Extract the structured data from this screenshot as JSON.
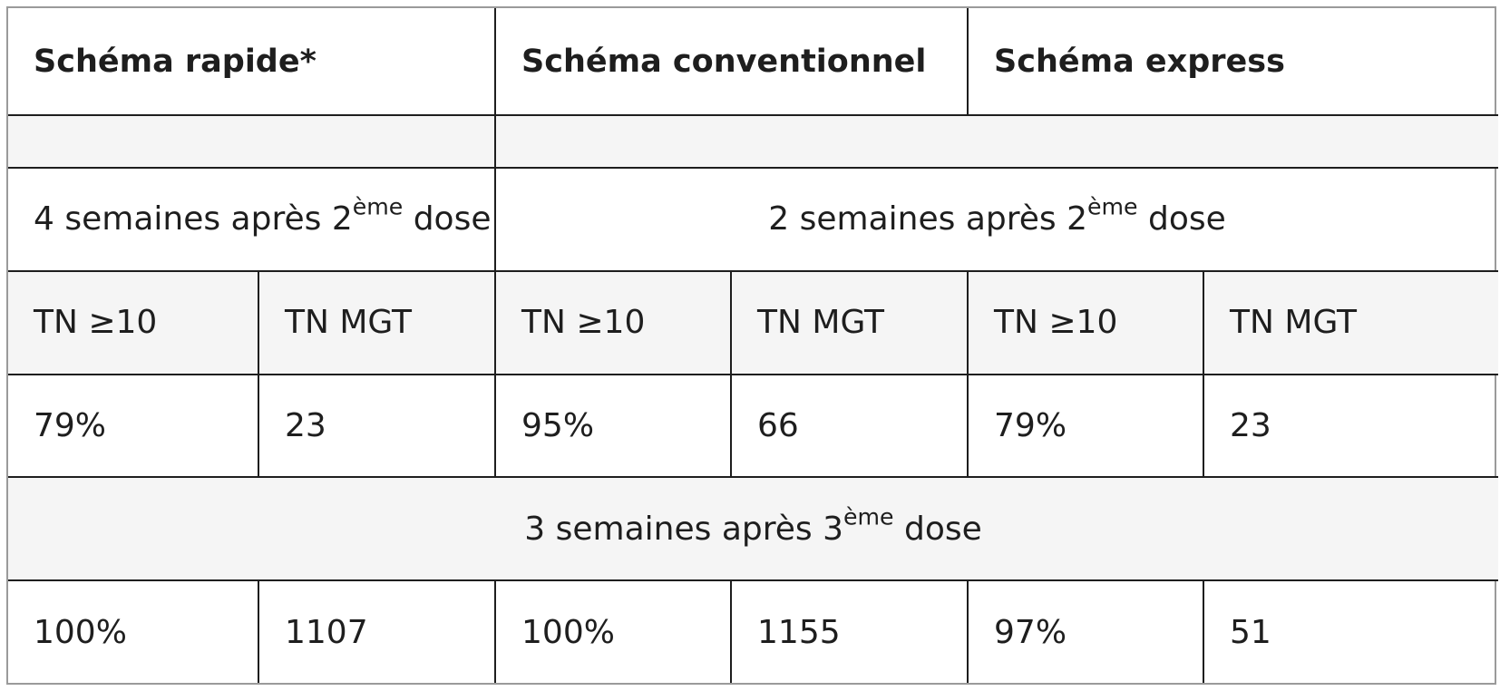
{
  "table": {
    "headers": [
      "Schéma rapide*",
      "Schéma conventionnel",
      "Schéma express"
    ],
    "period_2nd_dose_rapid": {
      "before": "4 semaines après 2",
      "sup": "ème",
      "after": " dose"
    },
    "period_2nd_dose_other": {
      "before": "2 semaines après 2",
      "sup": "ème",
      "after": " dose"
    },
    "subheaders": [
      "TN ≥10",
      "TN MGT",
      "TN ≥10",
      "TN MGT",
      "TN ≥10",
      "TN MGT"
    ],
    "row_2nd_dose": [
      "79%",
      "23",
      "95%",
      "66",
      "79%",
      "23"
    ],
    "period_3rd_dose": {
      "before": "3 semaines après 3",
      "sup": "ème",
      "after": " dose"
    },
    "row_3rd_dose": [
      "100%",
      "1107",
      "100%",
      "1155",
      "97%",
      "51"
    ]
  }
}
